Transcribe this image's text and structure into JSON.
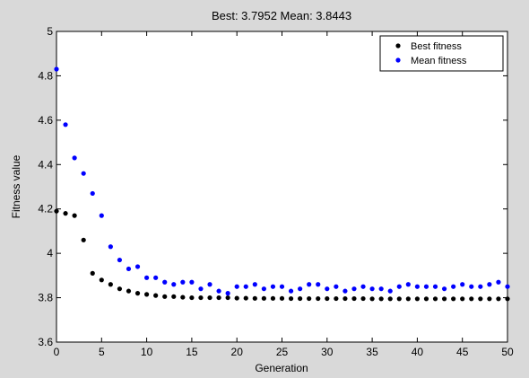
{
  "chart_data": {
    "type": "scatter",
    "title": "Best: 3.7952 Mean: 3.8443",
    "xlabel": "Generation",
    "ylabel": "Fitness value",
    "xlim": [
      0,
      50
    ],
    "ylim": [
      3.6,
      5
    ],
    "xticks": [
      0,
      5,
      10,
      15,
      20,
      25,
      30,
      35,
      40,
      45,
      50
    ],
    "yticks": [
      3.6,
      3.8,
      4,
      4.2,
      4.4,
      4.6,
      4.8,
      5
    ],
    "grid": false,
    "legend_position": "top-right",
    "series": [
      {
        "name": "Best fitness",
        "color": "#000000",
        "x": [
          0,
          1,
          2,
          3,
          4,
          5,
          6,
          7,
          8,
          9,
          10,
          11,
          12,
          13,
          14,
          15,
          16,
          17,
          18,
          19,
          20,
          21,
          22,
          23,
          24,
          25,
          26,
          27,
          28,
          29,
          30,
          31,
          32,
          33,
          34,
          35,
          36,
          37,
          38,
          39,
          40,
          41,
          42,
          43,
          44,
          45,
          46,
          47,
          48,
          49,
          50
        ],
        "y": [
          4.19,
          4.18,
          4.17,
          4.06,
          3.91,
          3.88,
          3.86,
          3.84,
          3.83,
          3.82,
          3.815,
          3.81,
          3.805,
          3.805,
          3.802,
          3.8,
          3.8,
          3.8,
          3.8,
          3.8,
          3.798,
          3.798,
          3.797,
          3.797,
          3.797,
          3.797,
          3.796,
          3.796,
          3.796,
          3.796,
          3.796,
          3.796,
          3.796,
          3.796,
          3.796,
          3.795,
          3.795,
          3.795,
          3.795,
          3.795,
          3.795,
          3.795,
          3.795,
          3.795,
          3.795,
          3.795,
          3.795,
          3.795,
          3.795,
          3.795,
          3.795
        ]
      },
      {
        "name": "Mean fitness",
        "color": "#0000ff",
        "x": [
          0,
          1,
          2,
          3,
          4,
          5,
          6,
          7,
          8,
          9,
          10,
          11,
          12,
          13,
          14,
          15,
          16,
          17,
          18,
          19,
          20,
          21,
          22,
          23,
          24,
          25,
          26,
          27,
          28,
          29,
          30,
          31,
          32,
          33,
          34,
          35,
          36,
          37,
          38,
          39,
          40,
          41,
          42,
          43,
          44,
          45,
          46,
          47,
          48,
          49,
          50
        ],
        "y": [
          4.83,
          4.58,
          4.43,
          4.36,
          4.27,
          4.17,
          4.03,
          3.97,
          3.93,
          3.94,
          3.89,
          3.89,
          3.87,
          3.86,
          3.87,
          3.87,
          3.84,
          3.86,
          3.83,
          3.82,
          3.85,
          3.85,
          3.86,
          3.84,
          3.85,
          3.85,
          3.83,
          3.84,
          3.86,
          3.86,
          3.84,
          3.85,
          3.83,
          3.84,
          3.85,
          3.84,
          3.84,
          3.83,
          3.85,
          3.86,
          3.85,
          3.85,
          3.85,
          3.84,
          3.85,
          3.86,
          3.85,
          3.85,
          3.86,
          3.87,
          3.85
        ]
      }
    ]
  }
}
